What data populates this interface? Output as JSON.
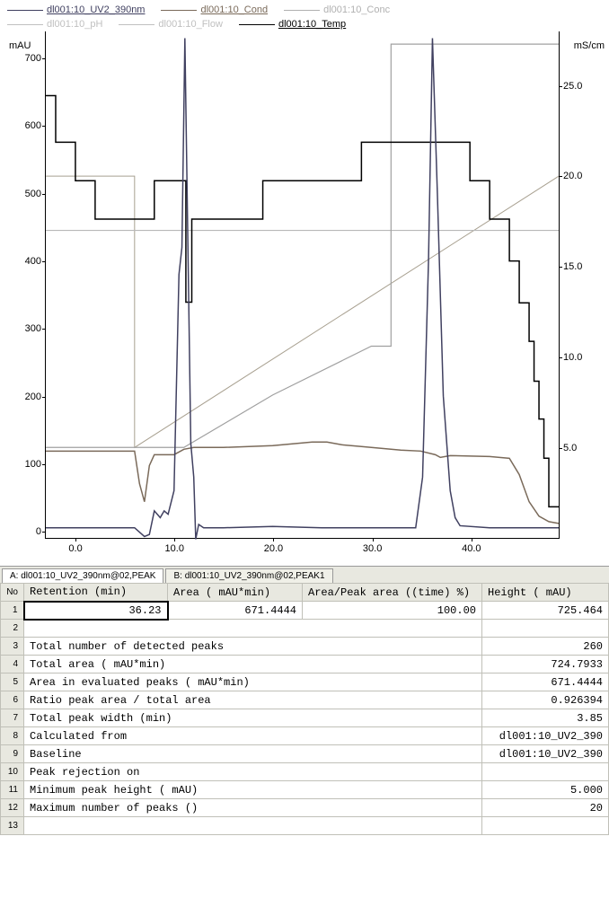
{
  "legend": {
    "rows": [
      [
        {
          "label": "dl001:10_UV2_390nm",
          "color": "#404060",
          "underline": true
        },
        {
          "label": "dl001:10_Cond",
          "color": "#7a6a5a",
          "underline": true
        },
        {
          "label": "dl001:10_Conc",
          "color": "#b0b0b0",
          "underline": false
        }
      ],
      [
        {
          "label": "dl001:10_pH",
          "color": "#c0c0c0",
          "underline": false
        },
        {
          "label": "dl001:10_Flow",
          "color": "#c0c0c0",
          "underline": false
        },
        {
          "label": "dl001:10_Temp",
          "color": "#000000",
          "underline": true
        }
      ]
    ]
  },
  "chart": {
    "y_left_unit": "mAU",
    "y_right_unit": "mS/cm",
    "y_left": {
      "min": -10,
      "max": 740,
      "ticks": [
        0,
        100,
        200,
        300,
        400,
        500,
        600,
        700
      ]
    },
    "y_right": {
      "min": 0,
      "max": 28,
      "ticks": [
        5.0,
        10.0,
        15.0,
        20.0,
        25.0
      ]
    },
    "x": {
      "min": -3,
      "max": 49,
      "ticks": [
        "0.0",
        "10.0",
        "20.0",
        "30.0",
        "40.0"
      ]
    },
    "x_tick_vals": [
      0,
      10,
      20,
      30,
      40
    ],
    "colors": {
      "uv": "#404060",
      "cond": "#7a6a5a",
      "conc": "#a0a0a0",
      "ph": "#b8b8b8",
      "flow": "#000000",
      "temp": "#a8a090"
    },
    "uv_points": [
      [
        -3,
        5
      ],
      [
        6,
        5
      ],
      [
        7,
        -8
      ],
      [
        7.5,
        -5
      ],
      [
        8,
        30
      ],
      [
        8.3,
        25
      ],
      [
        8.6,
        20
      ],
      [
        9,
        30
      ],
      [
        9.4,
        25
      ],
      [
        10,
        60
      ],
      [
        10.5,
        380
      ],
      [
        10.8,
        420
      ],
      [
        11.1,
        730
      ],
      [
        11.4,
        430
      ],
      [
        11.7,
        130
      ],
      [
        12,
        80
      ],
      [
        12.2,
        -12
      ],
      [
        12.5,
        10
      ],
      [
        13,
        5
      ],
      [
        15,
        5
      ],
      [
        20,
        7
      ],
      [
        25,
        5
      ],
      [
        30,
        5
      ],
      [
        34.5,
        5
      ],
      [
        35.2,
        80
      ],
      [
        35.8,
        400
      ],
      [
        36.2,
        730
      ],
      [
        36.7,
        500
      ],
      [
        37.3,
        200
      ],
      [
        38,
        60
      ],
      [
        38.5,
        20
      ],
      [
        39,
        8
      ],
      [
        42,
        5
      ],
      [
        49,
        5
      ]
    ],
    "cond_points": [
      [
        -3,
        4.8
      ],
      [
        6,
        4.8
      ],
      [
        6.5,
        3.0
      ],
      [
        7,
        2.0
      ],
      [
        7.5,
        4.0
      ],
      [
        8,
        4.6
      ],
      [
        10,
        4.6
      ],
      [
        11,
        4.9
      ],
      [
        12,
        5.0
      ],
      [
        15,
        5.0
      ],
      [
        20,
        5.1
      ],
      [
        22,
        5.2
      ],
      [
        24,
        5.3
      ],
      [
        25.5,
        5.3
      ],
      [
        27,
        5.15
      ],
      [
        29,
        5.05
      ],
      [
        31,
        4.95
      ],
      [
        33,
        4.85
      ],
      [
        35,
        4.8
      ],
      [
        36.5,
        4.6
      ],
      [
        37,
        4.45
      ],
      [
        38,
        4.55
      ],
      [
        42,
        4.5
      ],
      [
        43,
        4.45
      ],
      [
        44,
        4.4
      ],
      [
        45,
        3.5
      ],
      [
        46,
        2.0
      ],
      [
        47,
        1.2
      ],
      [
        48,
        0.9
      ],
      [
        49,
        0.8
      ]
    ],
    "conc_points": [
      [
        -3,
        5.0
      ],
      [
        11,
        5.0
      ],
      [
        11,
        5.0
      ],
      [
        20,
        7.9
      ],
      [
        30,
        10.6
      ],
      [
        32,
        10.6
      ],
      [
        32,
        27.3
      ],
      [
        49,
        27.3
      ]
    ],
    "ph_points": [
      [
        -3,
        17.0
      ],
      [
        49,
        17.0
      ]
    ],
    "temp_points": [
      [
        -3,
        20.0
      ],
      [
        6,
        20.0
      ],
      [
        6,
        5.0
      ],
      [
        49,
        20.0
      ],
      [
        49,
        20.0
      ]
    ],
    "flow_points_mau": [
      [
        -3,
        645
      ],
      [
        -2,
        645
      ],
      [
        -2,
        576
      ],
      [
        0,
        576
      ],
      [
        0,
        519
      ],
      [
        2,
        519
      ],
      [
        2,
        462
      ],
      [
        8,
        462
      ],
      [
        8,
        519
      ],
      [
        11.2,
        519
      ],
      [
        11.2,
        339
      ],
      [
        11.8,
        339
      ],
      [
        11.8,
        462
      ],
      [
        19,
        462
      ],
      [
        19,
        519
      ],
      [
        29,
        519
      ],
      [
        29,
        576
      ],
      [
        40,
        576
      ],
      [
        40,
        519
      ],
      [
        42,
        519
      ],
      [
        42,
        462
      ],
      [
        44,
        462
      ],
      [
        44,
        400
      ],
      [
        45,
        400
      ],
      [
        45,
        338
      ],
      [
        46,
        338
      ],
      [
        46,
        281
      ],
      [
        46.5,
        281
      ],
      [
        46.5,
        222
      ],
      [
        47,
        222
      ],
      [
        47,
        166
      ],
      [
        47.5,
        166
      ],
      [
        47.5,
        108
      ],
      [
        48,
        108
      ],
      [
        48,
        36
      ],
      [
        49,
        36
      ]
    ]
  },
  "tabs": {
    "a": "A: dl001:10_UV2_390nm@02,PEAK",
    "b": "B: dl001:10_UV2_390nm@02,PEAK1"
  },
  "table": {
    "headers": [
      "No",
      "Retention (min)",
      "Area ( mAU*min)",
      "Area/Peak area ((time) %)",
      "Height ( mAU)"
    ],
    "col_widths": [
      "26px",
      "160px",
      "150px",
      "200px",
      "auto"
    ],
    "data_row": {
      "no": "1",
      "retention": "36.23",
      "area": "671.4444",
      "areapct": "100.00",
      "height": "725.464"
    },
    "summary": [
      {
        "no": "2",
        "label": "",
        "value": ""
      },
      {
        "no": "3",
        "label": "Total number of detected peaks",
        "value": "260"
      },
      {
        "no": "4",
        "label": "Total area ( mAU*min)",
        "value": "724.7933"
      },
      {
        "no": "5",
        "label": "Area in evaluated peaks ( mAU*min)",
        "value": "671.4444"
      },
      {
        "no": "6",
        "label": "Ratio peak area / total area",
        "value": "0.926394"
      },
      {
        "no": "7",
        "label": "Total peak width (min)",
        "value": "3.85"
      },
      {
        "no": "8",
        "label": "Calculated from",
        "value": "dl001:10_UV2_390"
      },
      {
        "no": "9",
        "label": "Baseline",
        "value": "dl001:10_UV2_390"
      },
      {
        "no": "10",
        "label": "Peak rejection on",
        "value": ""
      },
      {
        "no": "11",
        "label": " Minimum peak height ( mAU)",
        "value": "5.000"
      },
      {
        "no": "12",
        "label": " Maximum number of peaks ()",
        "value": "20"
      },
      {
        "no": "13",
        "label": "",
        "value": ""
      }
    ]
  }
}
